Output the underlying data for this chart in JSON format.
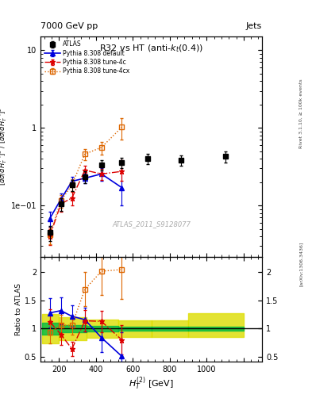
{
  "title": "R32 vs HT (anti-$k_t$(0.4))",
  "header_left": "7000 GeV pp",
  "header_right": "Jets",
  "xlabel": "$H_T^{(2)}$ [GeV]",
  "watermark": "ATLAS_2011_S9128077",
  "atlas_x": [
    150,
    210,
    270,
    340,
    430,
    540,
    680,
    860,
    1100
  ],
  "atlas_y": [
    0.045,
    0.105,
    0.185,
    0.235,
    0.335,
    0.355,
    0.4,
    0.385,
    0.43
  ],
  "atlas_yerr_lo": [
    0.01,
    0.02,
    0.03,
    0.04,
    0.05,
    0.055,
    0.06,
    0.06,
    0.07
  ],
  "atlas_yerr_hi": [
    0.01,
    0.02,
    0.03,
    0.04,
    0.05,
    0.055,
    0.06,
    0.06,
    0.07
  ],
  "default_x": [
    150,
    210,
    270,
    340,
    430,
    540
  ],
  "default_y": [
    0.068,
    0.12,
    0.205,
    0.225,
    0.255,
    0.17
  ],
  "default_yerr_lo": [
    0.015,
    0.022,
    0.028,
    0.033,
    0.045,
    0.07
  ],
  "default_yerr_hi": [
    0.015,
    0.022,
    0.028,
    0.033,
    0.045,
    0.11
  ],
  "tune4c_x": [
    150,
    210,
    270,
    340,
    430,
    540
  ],
  "tune4c_y": [
    0.04,
    0.105,
    0.125,
    0.285,
    0.255,
    0.275
  ],
  "tune4c_yerr_lo": [
    0.009,
    0.022,
    0.025,
    0.042,
    0.042,
    0.065
  ],
  "tune4c_yerr_hi": [
    0.009,
    0.022,
    0.025,
    0.042,
    0.042,
    0.11
  ],
  "tune4cx_x": [
    150,
    210,
    270,
    340,
    430,
    540
  ],
  "tune4cx_y": [
    0.042,
    0.115,
    0.185,
    0.46,
    0.56,
    1.02
  ],
  "tune4cx_yerr_lo": [
    0.01,
    0.022,
    0.032,
    0.075,
    0.105,
    0.32
  ],
  "tune4cx_yerr_hi": [
    0.01,
    0.022,
    0.032,
    0.075,
    0.105,
    0.32
  ],
  "ratio_default_x": [
    150,
    210,
    270,
    340,
    430,
    540
  ],
  "ratio_default_y": [
    1.28,
    1.32,
    1.22,
    1.16,
    0.84,
    0.51
  ],
  "ratio_default_yerr": [
    0.26,
    0.24,
    0.19,
    0.21,
    0.26,
    0.42
  ],
  "ratio_tune4c_x": [
    150,
    210,
    270,
    340,
    430,
    540
  ],
  "ratio_tune4c_y": [
    1.12,
    0.9,
    0.64,
    1.14,
    1.13,
    0.8
  ],
  "ratio_tune4c_yerr": [
    0.22,
    0.19,
    0.13,
    0.19,
    0.19,
    0.26
  ],
  "ratio_tune4cx_x": [
    150,
    210,
    270,
    340,
    430,
    540
  ],
  "ratio_tune4cx_y": [
    0.93,
    1.06,
    1.06,
    1.7,
    2.02,
    2.05
  ],
  "ratio_tune4cx_yerr": [
    0.19,
    0.19,
    0.16,
    0.3,
    0.42,
    0.52
  ],
  "band_edges": [
    110,
    200,
    350,
    520,
    700,
    900,
    1200
  ],
  "band_stat_lo": [
    0.9,
    0.93,
    0.95,
    0.97,
    0.97,
    0.97
  ],
  "band_stat_hi": [
    1.1,
    1.07,
    1.05,
    1.03,
    1.03,
    1.03
  ],
  "band_syst_lo": [
    0.74,
    0.8,
    0.84,
    0.85,
    0.85,
    0.85
  ],
  "band_syst_hi": [
    1.26,
    1.2,
    1.16,
    1.15,
    1.15,
    1.28
  ],
  "atlas_color": "#000000",
  "default_color": "#0000dd",
  "tune4c_color": "#dd0000",
  "tune4cx_color": "#dd6600",
  "green_band": "#00bb44",
  "yellow_band": "#dddd00",
  "xlim": [
    100,
    1300
  ],
  "ylim_main": [
    0.022,
    15
  ],
  "ylim_ratio": [
    0.42,
    2.28
  ]
}
